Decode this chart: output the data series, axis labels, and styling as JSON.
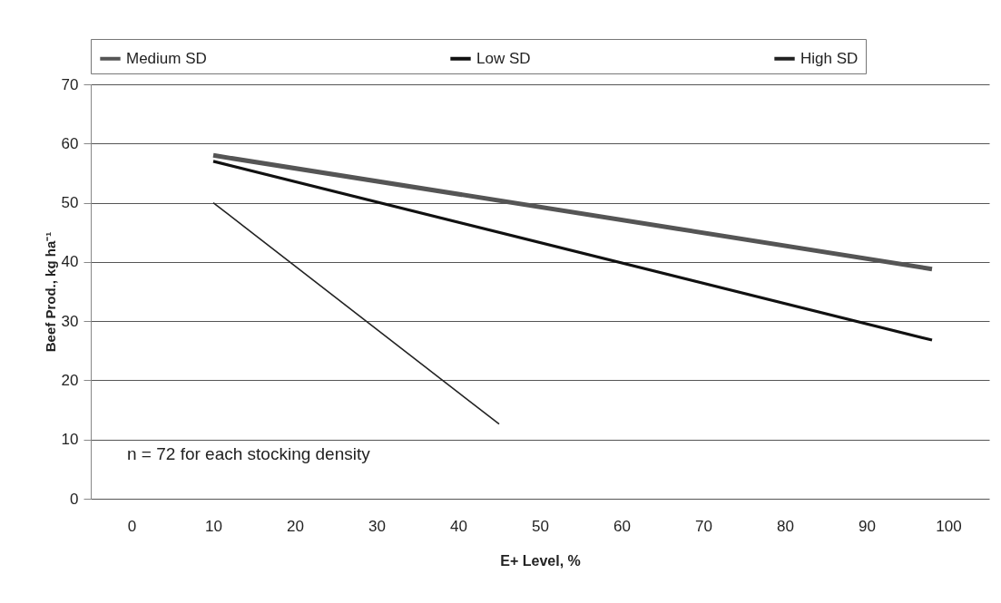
{
  "chart_data": {
    "type": "line",
    "xlabel": "E+ Level, %",
    "ylabel": "Beef Prod., kg ha⁻¹",
    "xlim": [
      -5,
      105
    ],
    "xticks": [
      0,
      10,
      20,
      30,
      40,
      50,
      60,
      70,
      80,
      90,
      100
    ],
    "ylim": [
      0,
      70
    ],
    "yticks": [
      0,
      10,
      20,
      30,
      40,
      50,
      60,
      70
    ],
    "grid": "y",
    "legend": "top",
    "line_style": "solid",
    "annotations": [
      "n = 72 for each stocking density"
    ],
    "series": [
      {
        "name": "Medium SD",
        "color": "#555555",
        "x": [
          10,
          98
        ],
        "values": [
          58,
          38.8
        ]
      },
      {
        "name": "Low SD",
        "color": "#111111",
        "x": [
          10,
          98
        ],
        "values": [
          57,
          26.8
        ]
      },
      {
        "name": "High SD",
        "color": "#222222",
        "x": [
          10,
          45
        ],
        "values": [
          50,
          12.6
        ]
      }
    ]
  }
}
